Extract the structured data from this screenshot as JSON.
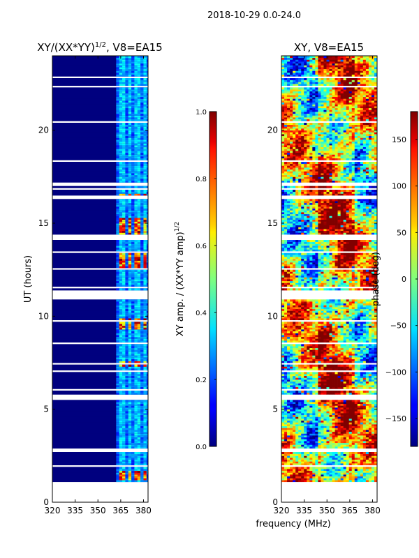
{
  "suptitle": "2018-10-29 0.0-24.0",
  "shared_xlabel": "frequency (MHz)",
  "chart_data": [
    {
      "type": "heatmap",
      "title": "XY/(XX*YY)",
      "title_exponent": "1/2",
      "title_suffix": ", V8=EA15",
      "xlabel": "",
      "ylabel": "UT (hours)",
      "xlim": [
        320,
        383
      ],
      "ylim": [
        0,
        24
      ],
      "xticks": [
        320,
        335,
        350,
        365,
        380
      ],
      "yticks": [
        0,
        5,
        10,
        15,
        20
      ],
      "data_start_hour": 1.1,
      "bright_channels_mhz": [
        365,
        370,
        375,
        380
      ],
      "colorbar": {
        "label": "XY amp. / (XX*YY amp)",
        "label_exponent": "1/2",
        "range": [
          0.0,
          1.0
        ],
        "ticks": [
          "0.0",
          "0.2",
          "0.4",
          "0.6",
          "0.8",
          "1.0"
        ]
      }
    },
    {
      "type": "heatmap",
      "title": "XY, V8=EA15",
      "xlabel": "",
      "ylabel": "",
      "xlim": [
        320,
        383
      ],
      "ylim": [
        0,
        24
      ],
      "xticks": [
        320,
        335,
        350,
        365,
        380
      ],
      "yticks": [
        0,
        5,
        10,
        15,
        20
      ],
      "data_start_hour": 1.1,
      "colorbar": {
        "label": "phase (deg)",
        "range": [
          -180,
          180
        ],
        "ticks": [
          "−150",
          "−100",
          "−50",
          "0",
          "50",
          "100",
          "150"
        ]
      }
    }
  ]
}
